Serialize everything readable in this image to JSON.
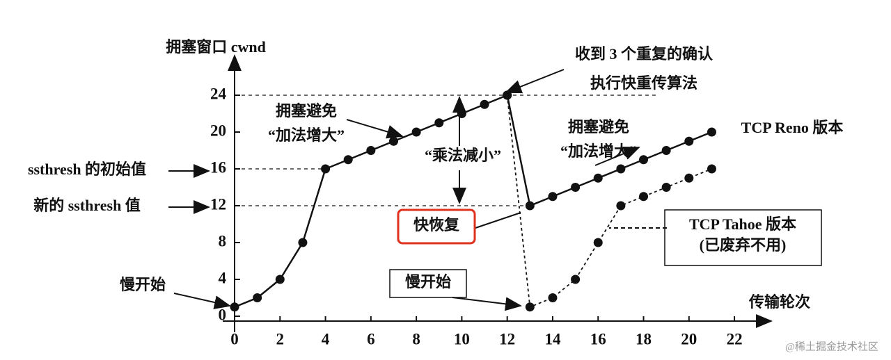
{
  "chart_data": {
    "type": "line",
    "y_label": "拥塞窗口 cwnd",
    "x_label": "传输轮次",
    "x": [
      0,
      1,
      2,
      3,
      4,
      5,
      6,
      7,
      8,
      9,
      10,
      11,
      12,
      13,
      14,
      15,
      16,
      17,
      18,
      19,
      20,
      21
    ],
    "series": [
      {
        "name": "TCP Reno 版本",
        "color": "#111111",
        "style": "solid",
        "values": [
          1,
          2,
          4,
          8,
          16,
          17,
          18,
          19,
          20,
          21,
          22,
          23,
          24,
          12,
          13,
          14,
          15,
          16,
          17,
          18,
          19,
          20
        ]
      },
      {
        "name": "TCP Tahoe 版本",
        "color": "#111111",
        "style": "dashed",
        "values": [
          null,
          null,
          null,
          null,
          null,
          null,
          null,
          null,
          null,
          null,
          null,
          null,
          24,
          1,
          2,
          4,
          8,
          12,
          13,
          14,
          15,
          16
        ]
      }
    ],
    "xlim": [
      0,
      23.5
    ],
    "ylim": [
      0,
      28.5
    ],
    "xticks": [
      0,
      2,
      4,
      6,
      8,
      10,
      12,
      14,
      16,
      18,
      20,
      22
    ],
    "yticks": [
      0,
      4,
      8,
      12,
      16,
      20,
      24
    ],
    "annotations": [
      "收到 3 个重复的确认",
      "执行快重传算法",
      "拥塞避免",
      "“加法增大”",
      "拥塞避免",
      "“加法增大”",
      "“乘法减小”",
      "ssthresh 的初始值",
      "新的 ssthresh 值",
      "慢开始",
      "慢开始",
      "快恢复",
      "(已废弃不用)"
    ],
    "watermark": "@稀土掘金技术社区"
  }
}
